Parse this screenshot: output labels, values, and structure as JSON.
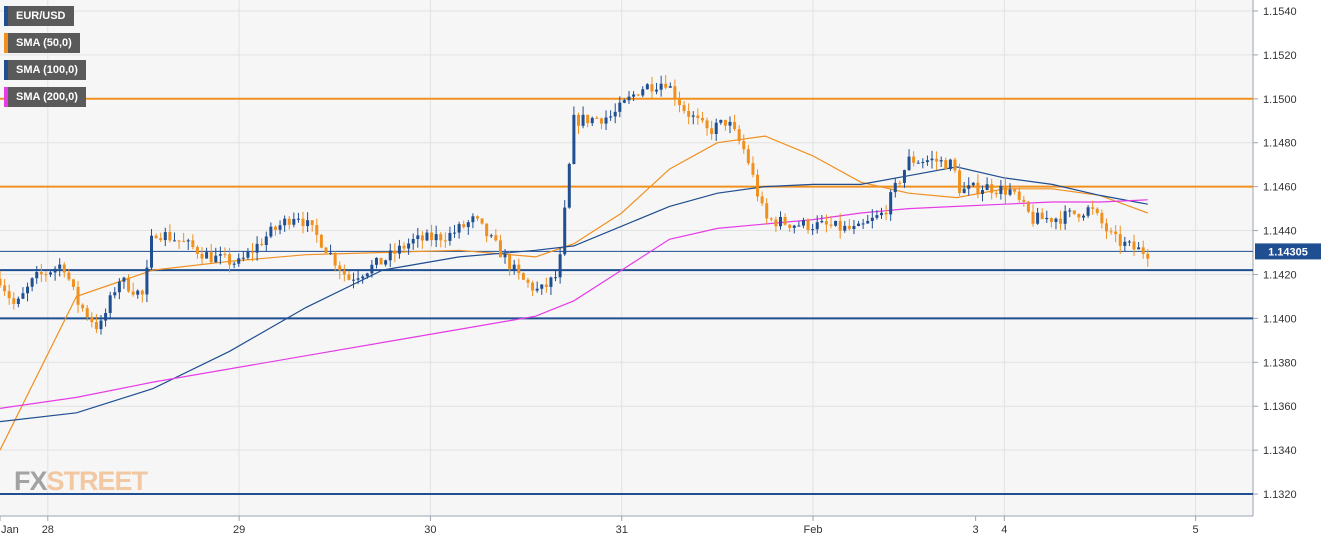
{
  "legend": [
    {
      "label": "EUR/USD",
      "color": "#1f4e91"
    },
    {
      "label": "SMA (50,0)",
      "color": "#f0901e"
    },
    {
      "label": "SMA (100,0)",
      "color": "#1f4e91"
    },
    {
      "label": "SMA (200,0)",
      "color": "#e63ce6"
    }
  ],
  "logo": {
    "part1": "FX",
    "part2": "STREET"
  },
  "price_tag": "1.14305",
  "colors": {
    "up": "#1f4e91",
    "down": "#f0901e",
    "sma50": "#f0901e",
    "sma100": "#1f4e91",
    "sma200": "#e63ce6",
    "plot_bg": "#f6f6f6",
    "grid": "#e2e2e2"
  },
  "chart_data": {
    "type": "candlestick",
    "title": "",
    "xlabel": "",
    "ylabel": "",
    "ylim": [
      1.131,
      1.1545
    ],
    "y_ticks": [
      "1.1320",
      "1.1340",
      "1.1360",
      "1.1380",
      "1.1400",
      "1.1420",
      "1.1440",
      "1.1460",
      "1.1480",
      "1.1500",
      "1.1520",
      "1.1540"
    ],
    "x_ticks": [
      {
        "label": "Jan",
        "t": 0.0
      },
      {
        "label": "28",
        "t": 0.25
      },
      {
        "label": "29",
        "t": 1.25
      },
      {
        "label": "30",
        "t": 2.25
      },
      {
        "label": "31",
        "t": 3.25
      },
      {
        "label": "Feb",
        "t": 4.25
      },
      {
        "label": "3",
        "t": 5.1
      },
      {
        "label": "4",
        "t": 5.25
      },
      {
        "label": "5",
        "t": 6.25
      }
    ],
    "x_range": [
      0,
      6.55
    ],
    "grid": true,
    "legend_position": "top-left",
    "last_price": 1.14305,
    "horizontal_levels": [
      {
        "value": 1.15,
        "color": "#f0901e"
      },
      {
        "value": 1.146,
        "color": "#f0901e"
      },
      {
        "value": 1.1422,
        "color": "#1f4e91"
      },
      {
        "value": 1.14,
        "color": "#1f4e91"
      },
      {
        "value": 1.132,
        "color": "#1f4e91"
      },
      {
        "value": 1.14305,
        "color": "#1f4e91"
      }
    ],
    "price_path": [
      [
        0.0,
        1.1418
      ],
      [
        0.08,
        1.1405
      ],
      [
        0.18,
        1.1418
      ],
      [
        0.33,
        1.1425
      ],
      [
        0.4,
        1.1408
      ],
      [
        0.52,
        1.1395
      ],
      [
        0.62,
        1.1418
      ],
      [
        0.75,
        1.141
      ],
      [
        0.8,
        1.144
      ],
      [
        0.92,
        1.1436
      ],
      [
        1.1,
        1.1428
      ],
      [
        1.25,
        1.1425
      ],
      [
        1.4,
        1.1438
      ],
      [
        1.55,
        1.1448
      ],
      [
        1.68,
        1.1435
      ],
      [
        1.82,
        1.1418
      ],
      [
        2.0,
        1.1426
      ],
      [
        2.15,
        1.1435
      ],
      [
        2.35,
        1.1438
      ],
      [
        2.48,
        1.1445
      ],
      [
        2.6,
        1.1432
      ],
      [
        2.72,
        1.1418
      ],
      [
        2.82,
        1.1412
      ],
      [
        2.92,
        1.142
      ],
      [
        3.0,
        1.149
      ],
      [
        3.2,
        1.1492
      ],
      [
        3.35,
        1.1505
      ],
      [
        3.48,
        1.1508
      ],
      [
        3.58,
        1.1495
      ],
      [
        3.7,
        1.1485
      ],
      [
        3.8,
        1.149
      ],
      [
        3.9,
        1.1475
      ],
      [
        4.0,
        1.1445
      ],
      [
        4.15,
        1.1443
      ],
      [
        4.32,
        1.1442
      ],
      [
        4.48,
        1.144
      ],
      [
        4.62,
        1.1448
      ],
      [
        4.75,
        1.1472
      ],
      [
        4.88,
        1.1472
      ],
      [
        4.98,
        1.147
      ],
      [
        5.02,
        1.1458
      ],
      [
        5.15,
        1.146
      ],
      [
        5.28,
        1.1458
      ],
      [
        5.4,
        1.1445
      ],
      [
        5.55,
        1.1446
      ],
      [
        5.7,
        1.145
      ],
      [
        5.82,
        1.1436
      ],
      [
        5.92,
        1.1432
      ],
      [
        6.0,
        1.143
      ]
    ],
    "series": [
      {
        "name": "SMA (50,0)",
        "x": [
          0.0,
          0.4,
          0.8,
          1.2,
          1.6,
          2.0,
          2.4,
          2.8,
          3.0,
          3.25,
          3.5,
          3.75,
          4.0,
          4.25,
          4.5,
          4.75,
          5.0,
          5.25,
          5.5,
          5.75,
          6.0
        ],
        "values": [
          1.134,
          1.141,
          1.1422,
          1.1426,
          1.1429,
          1.143,
          1.1431,
          1.1428,
          1.1434,
          1.1448,
          1.1468,
          1.148,
          1.1483,
          1.1474,
          1.1462,
          1.1457,
          1.1455,
          1.1459,
          1.1459,
          1.1456,
          1.1448
        ]
      },
      {
        "name": "SMA (100,0)",
        "x": [
          0.0,
          0.4,
          0.8,
          1.2,
          1.6,
          2.0,
          2.4,
          2.8,
          3.0,
          3.25,
          3.5,
          3.75,
          4.0,
          4.25,
          4.5,
          4.75,
          5.0,
          5.25,
          5.5,
          5.75,
          6.0
        ],
        "values": [
          1.1353,
          1.1357,
          1.1368,
          1.1385,
          1.1405,
          1.1422,
          1.1428,
          1.1431,
          1.1433,
          1.1442,
          1.1451,
          1.1457,
          1.146,
          1.1461,
          1.1461,
          1.1465,
          1.1469,
          1.1464,
          1.1461,
          1.1456,
          1.1452
        ]
      },
      {
        "name": "SMA (200,0)",
        "x": [
          0.0,
          0.4,
          0.8,
          1.2,
          1.6,
          2.0,
          2.4,
          2.8,
          3.0,
          3.25,
          3.5,
          3.75,
          4.0,
          4.25,
          4.5,
          4.75,
          5.0,
          5.25,
          5.5,
          5.75,
          6.0
        ],
        "values": [
          1.1359,
          1.1364,
          1.1371,
          1.1377,
          1.1383,
          1.1389,
          1.1395,
          1.1401,
          1.1408,
          1.1422,
          1.1436,
          1.1441,
          1.1443,
          1.1445,
          1.1448,
          1.145,
          1.1451,
          1.1452,
          1.1453,
          1.1453,
          1.1454
        ]
      }
    ]
  }
}
